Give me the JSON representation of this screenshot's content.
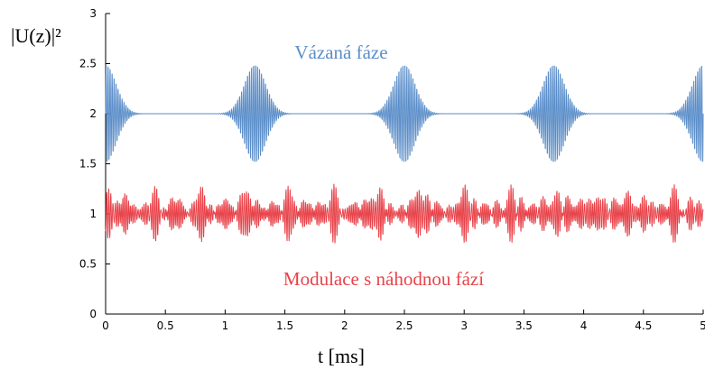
{
  "chart_data": {
    "type": "line",
    "ylabel": "|U(z)|²",
    "xlabel": "t [ms]",
    "xlim": [
      0,
      5
    ],
    "ylim": [
      0,
      3
    ],
    "xticks": [
      "0",
      "0.5",
      "1",
      "1.5",
      "2",
      "2.5",
      "3",
      "3.5",
      "4",
      "4.5",
      "5"
    ],
    "yticks": [
      "0",
      "0.5",
      "1",
      "1.5",
      "2",
      "2.5",
      "3"
    ],
    "grid": false,
    "series": [
      {
        "name": "Vázaná fáze",
        "color": "#5b8ec9",
        "baseline": 2.0,
        "pulse_centers_ms": [
          0,
          1.25,
          2.5,
          3.75,
          5.0
        ],
        "peak_amplitude": 0.5,
        "description_label_position": "top-center"
      },
      {
        "name": "Modulace s náhodnou fází",
        "color": "#e8434a",
        "baseline": 1.0,
        "peak_amplitude": 0.3,
        "description_label_position": "bottom-center"
      }
    ]
  }
}
